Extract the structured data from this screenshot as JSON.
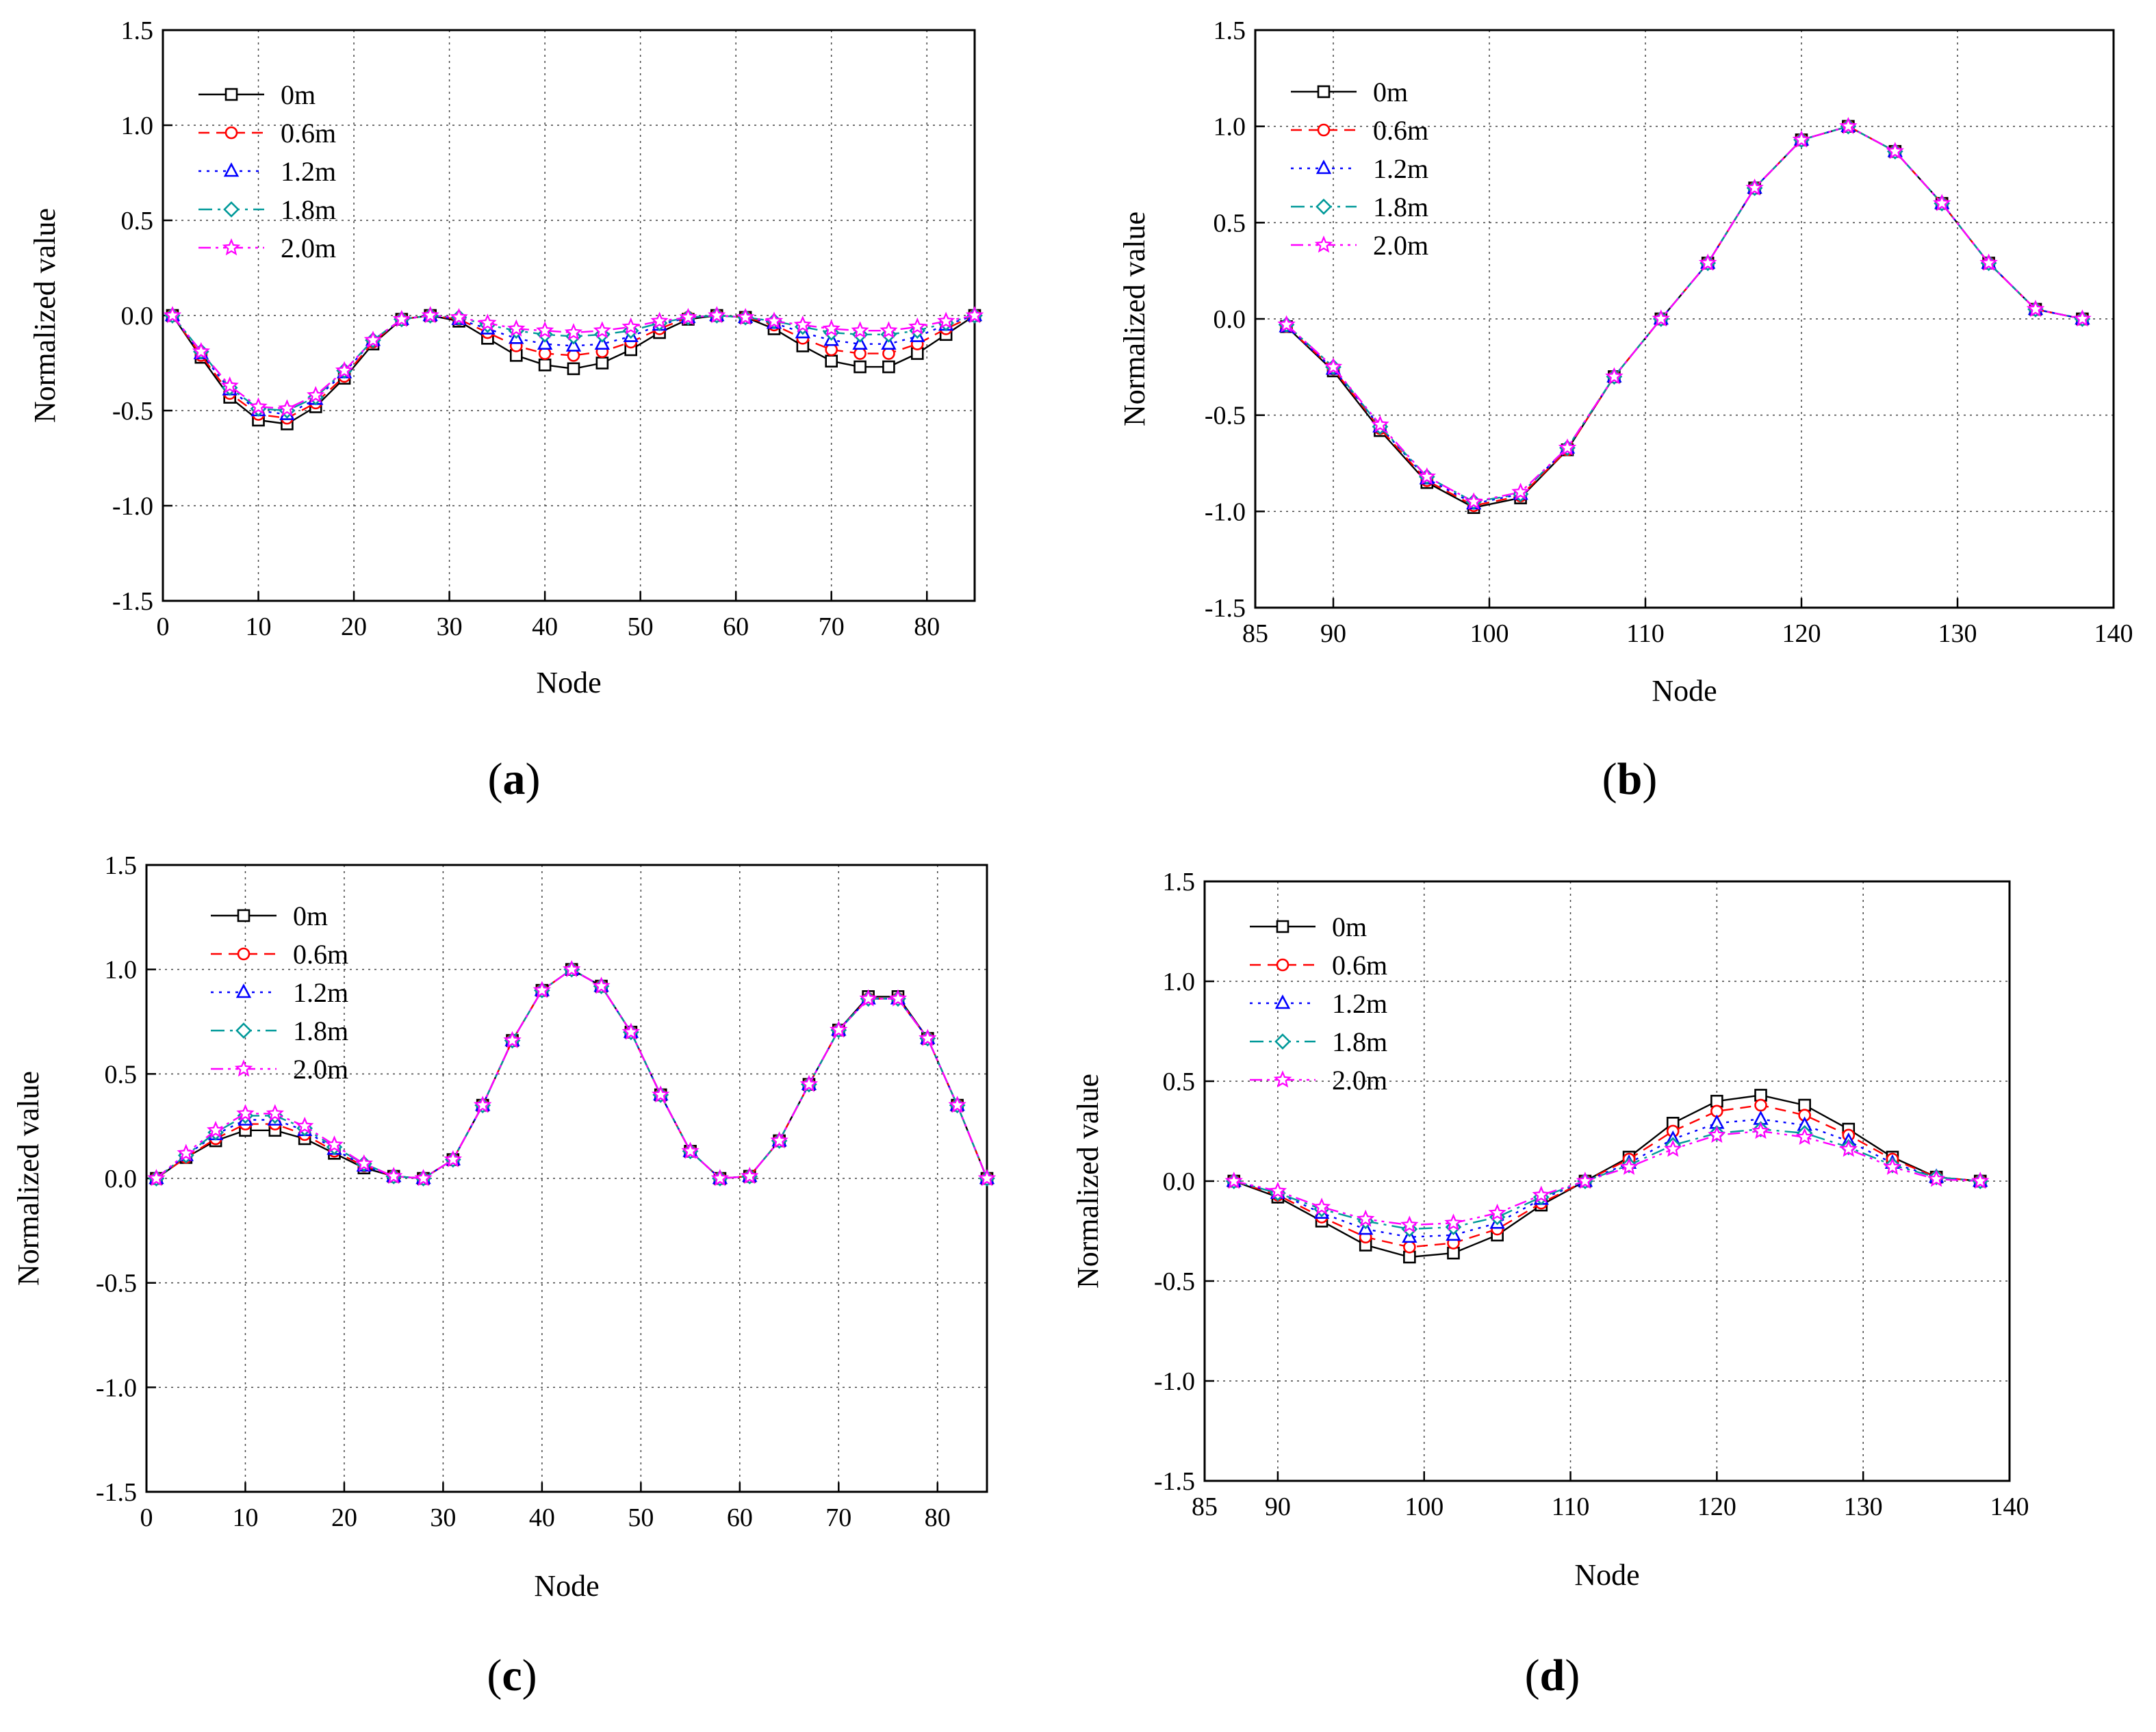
{
  "figure": {
    "panel_labels": [
      "(a)",
      "(b)",
      "(c)",
      "(d)"
    ]
  },
  "chart_data": [
    {
      "id": "a",
      "type": "line",
      "panel_label": "(a)",
      "xlabel": "Node",
      "ylabel": "Normalized value",
      "xlim": [
        0,
        85
      ],
      "ylim": [
        -1.5,
        1.5
      ],
      "xticks": [
        0,
        10,
        20,
        30,
        40,
        50,
        60,
        70,
        80
      ],
      "yticks": [
        -1.5,
        -1.0,
        -0.5,
        0.0,
        0.5,
        1.0,
        1.5
      ],
      "ytick_labels": [
        "-1.5",
        "-1.0",
        "-0.5",
        "0.0",
        "0.5",
        "1.0",
        "1.5"
      ],
      "grid": true,
      "legend_position": "top-left",
      "x": [
        1,
        4,
        7,
        10,
        13,
        16,
        19,
        22,
        25,
        28,
        31,
        34,
        37,
        40,
        43,
        46,
        49,
        52,
        55,
        58,
        61,
        64,
        67,
        70,
        73,
        76,
        79,
        82,
        85
      ],
      "series": [
        {
          "name": "0m",
          "color": "#000000",
          "dash": "solid",
          "marker": "square",
          "values": [
            0,
            -0.22,
            -0.43,
            -0.55,
            -0.57,
            -0.48,
            -0.33,
            -0.15,
            -0.02,
            0,
            -0.03,
            -0.12,
            -0.21,
            -0.26,
            -0.28,
            -0.25,
            -0.18,
            -0.09,
            -0.02,
            0,
            -0.01,
            -0.07,
            -0.16,
            -0.24,
            -0.27,
            -0.27,
            -0.2,
            -0.1,
            0
          ]
        },
        {
          "name": "0.6m",
          "color": "#ff0000",
          "dash": "dash",
          "marker": "circle",
          "values": [
            0,
            -0.21,
            -0.41,
            -0.52,
            -0.54,
            -0.46,
            -0.32,
            -0.14,
            -0.02,
            0,
            -0.02,
            -0.09,
            -0.16,
            -0.2,
            -0.21,
            -0.19,
            -0.14,
            -0.07,
            -0.01,
            0,
            -0.01,
            -0.05,
            -0.12,
            -0.18,
            -0.2,
            -0.2,
            -0.15,
            -0.07,
            0
          ]
        },
        {
          "name": "1.2m",
          "color": "#0000ff",
          "dash": "dot",
          "marker": "triangle",
          "values": [
            0,
            -0.2,
            -0.39,
            -0.5,
            -0.52,
            -0.44,
            -0.3,
            -0.13,
            -0.02,
            0,
            -0.02,
            -0.07,
            -0.12,
            -0.15,
            -0.16,
            -0.15,
            -0.11,
            -0.05,
            -0.01,
            0,
            -0.01,
            -0.04,
            -0.09,
            -0.13,
            -0.15,
            -0.15,
            -0.11,
            -0.05,
            0
          ]
        },
        {
          "name": "1.8m",
          "color": "#009999",
          "dash": "dashdot",
          "marker": "diamond",
          "values": [
            0,
            -0.19,
            -0.38,
            -0.49,
            -0.5,
            -0.43,
            -0.29,
            -0.13,
            -0.02,
            0,
            -0.01,
            -0.05,
            -0.08,
            -0.1,
            -0.11,
            -0.1,
            -0.08,
            -0.04,
            -0.01,
            0,
            -0.01,
            -0.03,
            -0.06,
            -0.09,
            -0.1,
            -0.1,
            -0.08,
            -0.04,
            0
          ]
        },
        {
          "name": "2.0m",
          "color": "#ff00ff",
          "dash": "dashdotdot",
          "marker": "star",
          "values": [
            0,
            -0.19,
            -0.37,
            -0.48,
            -0.49,
            -0.42,
            -0.29,
            -0.13,
            -0.02,
            0,
            -0.01,
            -0.04,
            -0.07,
            -0.08,
            -0.09,
            -0.08,
            -0.06,
            -0.03,
            -0.01,
            0,
            -0.01,
            -0.03,
            -0.05,
            -0.07,
            -0.08,
            -0.08,
            -0.06,
            -0.03,
            0
          ]
        }
      ]
    },
    {
      "id": "b",
      "type": "line",
      "panel_label": "(b)",
      "xlabel": "Node",
      "ylabel": "Normalized value",
      "xlim": [
        85,
        140
      ],
      "ylim": [
        -1.5,
        1.5
      ],
      "xticks": [
        85,
        90,
        100,
        110,
        120,
        130,
        140
      ],
      "yticks": [
        -1.5,
        -1.0,
        -0.5,
        0.0,
        0.5,
        1.0,
        1.5
      ],
      "ytick_labels": [
        "-1.5",
        "-1.0",
        "-0.5",
        "0.0",
        "0.5",
        "1.0",
        "1.5"
      ],
      "grid": true,
      "legend_position": "top-left",
      "x": [
        87,
        90,
        93,
        96,
        99,
        102,
        105,
        108,
        111,
        114,
        117,
        120,
        123,
        126,
        129,
        132,
        135,
        138
      ],
      "series": [
        {
          "name": "0m",
          "color": "#000000",
          "dash": "solid",
          "marker": "square",
          "values": [
            -0.04,
            -0.27,
            -0.58,
            -0.85,
            -0.98,
            -0.93,
            -0.68,
            -0.3,
            0.0,
            0.29,
            0.68,
            0.93,
            1.0,
            0.87,
            0.6,
            0.29,
            0.05,
            0.0
          ]
        },
        {
          "name": "0.6m",
          "color": "#ff0000",
          "dash": "dash",
          "marker": "circle",
          "values": [
            -0.04,
            -0.26,
            -0.57,
            -0.84,
            -0.97,
            -0.92,
            -0.68,
            -0.3,
            0.0,
            0.29,
            0.68,
            0.93,
            1.0,
            0.87,
            0.6,
            0.29,
            0.05,
            0.0
          ]
        },
        {
          "name": "1.2m",
          "color": "#0000ff",
          "dash": "dot",
          "marker": "triangle",
          "values": [
            -0.04,
            -0.26,
            -0.56,
            -0.83,
            -0.96,
            -0.91,
            -0.67,
            -0.3,
            0.0,
            0.29,
            0.68,
            0.93,
            1.0,
            0.87,
            0.6,
            0.29,
            0.05,
            0.0
          ]
        },
        {
          "name": "1.8m",
          "color": "#009999",
          "dash": "dashdot",
          "marker": "diamond",
          "values": [
            -0.03,
            -0.25,
            -0.56,
            -0.82,
            -0.95,
            -0.91,
            -0.67,
            -0.3,
            0.0,
            0.29,
            0.68,
            0.93,
            1.0,
            0.87,
            0.6,
            0.29,
            0.05,
            0.0
          ]
        },
        {
          "name": "2.0m",
          "color": "#ff00ff",
          "dash": "dashdotdot",
          "marker": "star",
          "values": [
            -0.03,
            -0.25,
            -0.55,
            -0.82,
            -0.95,
            -0.9,
            -0.67,
            -0.3,
            0.0,
            0.29,
            0.68,
            0.93,
            1.0,
            0.87,
            0.6,
            0.29,
            0.05,
            0.0
          ]
        }
      ]
    },
    {
      "id": "c",
      "type": "line",
      "panel_label": "(c)",
      "xlabel": "Node",
      "ylabel": "Normalized value",
      "xlim": [
        0,
        85
      ],
      "ylim": [
        -1.5,
        1.5
      ],
      "xticks": [
        0,
        10,
        20,
        30,
        40,
        50,
        60,
        70,
        80
      ],
      "yticks": [
        -1.5,
        -1.0,
        -0.5,
        0.0,
        0.5,
        1.0,
        1.5
      ],
      "ytick_labels": [
        "-1.5",
        "-1.0",
        "-0.5",
        "0.0",
        "0.5",
        "1.0",
        "1.5"
      ],
      "grid": true,
      "legend_position": "top-left",
      "x": [
        1,
        4,
        7,
        10,
        13,
        16,
        19,
        22,
        25,
        28,
        31,
        34,
        37,
        40,
        43,
        46,
        49,
        52,
        55,
        58,
        61,
        64,
        67,
        70,
        73,
        76,
        79,
        82,
        85
      ],
      "series": [
        {
          "name": "0m",
          "color": "#000000",
          "dash": "solid",
          "marker": "square",
          "values": [
            0,
            0.1,
            0.18,
            0.23,
            0.23,
            0.19,
            0.12,
            0.05,
            0.01,
            0,
            0.09,
            0.35,
            0.66,
            0.9,
            1.0,
            0.92,
            0.7,
            0.4,
            0.13,
            0.0,
            0.01,
            0.18,
            0.45,
            0.71,
            0.87,
            0.87,
            0.67,
            0.35,
            0
          ]
        },
        {
          "name": "0.6m",
          "color": "#ff0000",
          "dash": "dash",
          "marker": "circle",
          "values": [
            0,
            0.1,
            0.19,
            0.26,
            0.26,
            0.21,
            0.13,
            0.06,
            0.01,
            0,
            0.09,
            0.35,
            0.66,
            0.9,
            1.0,
            0.92,
            0.7,
            0.4,
            0.13,
            0.0,
            0.01,
            0.18,
            0.45,
            0.71,
            0.86,
            0.86,
            0.67,
            0.35,
            0
          ]
        },
        {
          "name": "1.2m",
          "color": "#0000ff",
          "dash": "dot",
          "marker": "triangle",
          "values": [
            0,
            0.11,
            0.21,
            0.28,
            0.28,
            0.23,
            0.14,
            0.06,
            0.01,
            0,
            0.09,
            0.35,
            0.66,
            0.9,
            1.0,
            0.92,
            0.7,
            0.4,
            0.13,
            0.0,
            0.01,
            0.18,
            0.45,
            0.71,
            0.86,
            0.86,
            0.67,
            0.35,
            0
          ]
        },
        {
          "name": "1.8m",
          "color": "#009999",
          "dash": "dashdot",
          "marker": "diamond",
          "values": [
            0,
            0.11,
            0.22,
            0.3,
            0.3,
            0.24,
            0.15,
            0.07,
            0.01,
            0,
            0.09,
            0.35,
            0.66,
            0.9,
            1.0,
            0.92,
            0.7,
            0.4,
            0.13,
            0.0,
            0.01,
            0.18,
            0.45,
            0.71,
            0.86,
            0.86,
            0.67,
            0.35,
            0
          ]
        },
        {
          "name": "2.0m",
          "color": "#ff00ff",
          "dash": "dashdotdot",
          "marker": "star",
          "values": [
            0,
            0.12,
            0.23,
            0.31,
            0.31,
            0.25,
            0.16,
            0.07,
            0.01,
            0,
            0.09,
            0.35,
            0.66,
            0.9,
            1.0,
            0.92,
            0.7,
            0.4,
            0.13,
            0.0,
            0.01,
            0.18,
            0.45,
            0.71,
            0.86,
            0.86,
            0.67,
            0.35,
            0
          ]
        }
      ]
    },
    {
      "id": "d",
      "type": "line",
      "panel_label": "(d)",
      "xlabel": "Node",
      "ylabel": "Normalized value",
      "xlim": [
        85,
        140
      ],
      "ylim": [
        -1.5,
        1.5
      ],
      "xticks": [
        85,
        90,
        100,
        110,
        120,
        130,
        140
      ],
      "yticks": [
        -1.5,
        -1.0,
        -0.5,
        0.0,
        0.5,
        1.0,
        1.5
      ],
      "ytick_labels": [
        "-1.5",
        "-1.0",
        "-0.5",
        "0.0",
        "0.5",
        "1.0",
        "1.5"
      ],
      "grid": true,
      "legend_position": "top-left",
      "x": [
        87,
        90,
        93,
        96,
        99,
        102,
        105,
        108,
        111,
        114,
        117,
        120,
        123,
        126,
        129,
        132,
        135,
        138
      ],
      "series": [
        {
          "name": "0m",
          "color": "#000000",
          "dash": "solid",
          "marker": "square",
          "values": [
            0.0,
            -0.08,
            -0.2,
            -0.32,
            -0.38,
            -0.36,
            -0.27,
            -0.12,
            0.0,
            0.12,
            0.29,
            0.4,
            0.43,
            0.38,
            0.26,
            0.12,
            0.02,
            0.0
          ]
        },
        {
          "name": "0.6m",
          "color": "#ff0000",
          "dash": "dash",
          "marker": "circle",
          "values": [
            0.0,
            -0.07,
            -0.18,
            -0.28,
            -0.33,
            -0.31,
            -0.24,
            -0.11,
            0.0,
            0.11,
            0.25,
            0.35,
            0.38,
            0.33,
            0.23,
            0.11,
            0.02,
            0.0
          ]
        },
        {
          "name": "1.2m",
          "color": "#0000ff",
          "dash": "dot",
          "marker": "triangle",
          "values": [
            0.0,
            -0.06,
            -0.16,
            -0.24,
            -0.28,
            -0.27,
            -0.21,
            -0.09,
            0.0,
            0.09,
            0.21,
            0.29,
            0.31,
            0.28,
            0.2,
            0.09,
            0.02,
            0.0
          ]
        },
        {
          "name": "1.8m",
          "color": "#009999",
          "dash": "dashdot",
          "marker": "diamond",
          "values": [
            0.0,
            -0.06,
            -0.14,
            -0.2,
            -0.24,
            -0.23,
            -0.18,
            -0.08,
            0.0,
            0.08,
            0.18,
            0.24,
            0.26,
            0.24,
            0.17,
            0.08,
            0.02,
            0.0
          ]
        },
        {
          "name": "2.0m",
          "color": "#ff00ff",
          "dash": "dashdotdot",
          "marker": "star",
          "values": [
            0.0,
            -0.05,
            -0.13,
            -0.19,
            -0.22,
            -0.21,
            -0.16,
            -0.07,
            0.0,
            0.07,
            0.16,
            0.23,
            0.25,
            0.22,
            0.16,
            0.07,
            0.01,
            0.0
          ]
        }
      ]
    }
  ]
}
